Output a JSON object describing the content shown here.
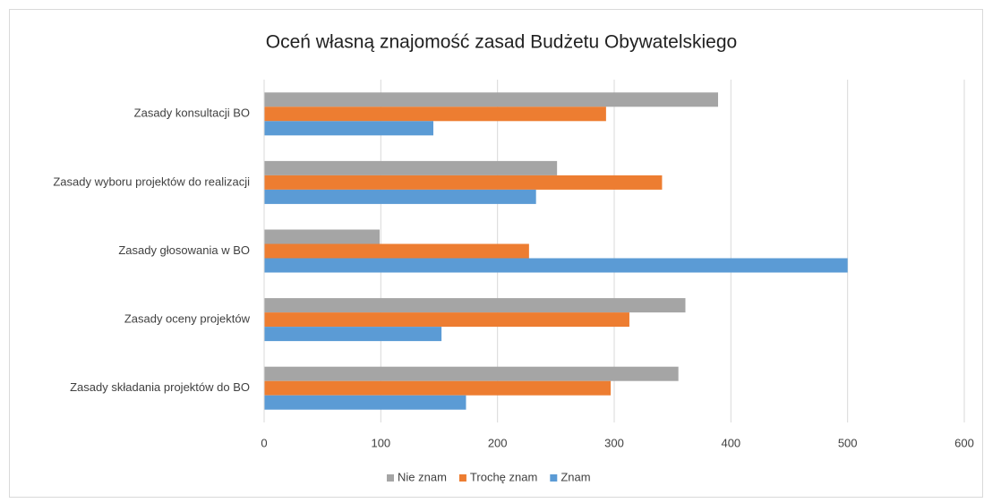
{
  "chart_data": {
    "type": "hbar",
    "title": "Oceń własną znajomość zasad Budżetu Obywatelskiego",
    "categories": [
      "Zasady konsultacji BO",
      "Zasady wyboru projektów do realizacji",
      "Zasady głosowania w BO",
      "Zasady oceny projektów",
      "Zasady składania projektów do BO"
    ],
    "series": [
      {
        "name": "Nie znam",
        "color": "#a5a5a5",
        "values": [
          389,
          251,
          99,
          361,
          355
        ]
      },
      {
        "name": "Trochę znam",
        "color": "#ed7d31",
        "values": [
          293,
          341,
          227,
          313,
          297
        ]
      },
      {
        "name": "Znam",
        "color": "#5b9bd5",
        "values": [
          145,
          233,
          500,
          152,
          173
        ]
      }
    ],
    "xlim": [
      0,
      600
    ],
    "xticks": [
      0,
      100,
      200,
      300,
      400,
      500,
      600
    ],
    "grid": true,
    "legend": "bottom"
  }
}
